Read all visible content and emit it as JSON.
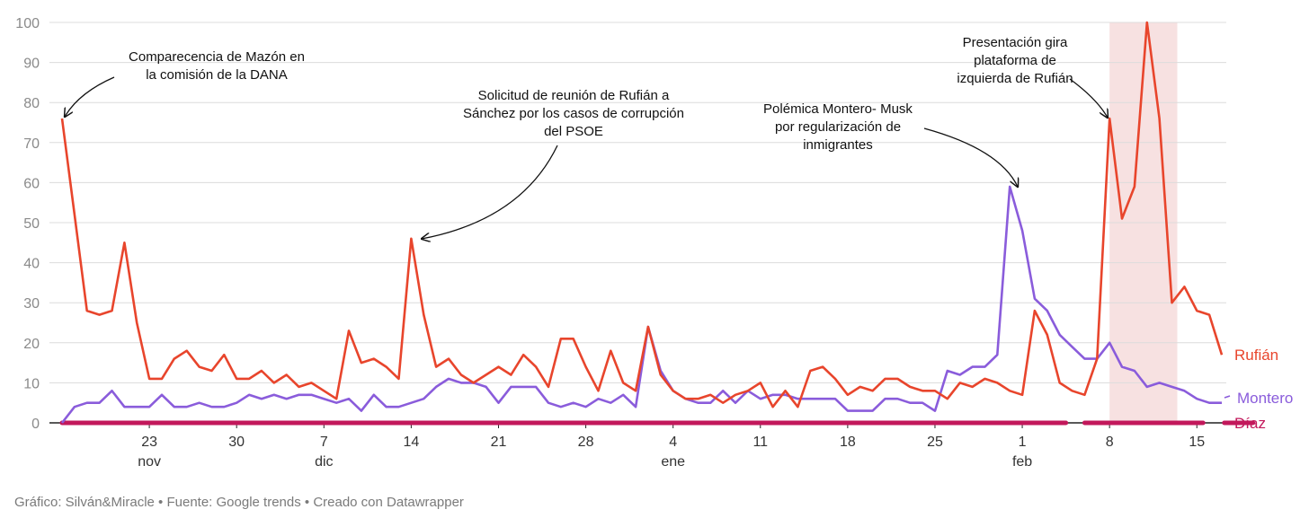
{
  "chart_data": {
    "type": "line",
    "ylim": [
      0,
      100
    ],
    "y_ticks": [
      0,
      10,
      20,
      30,
      40,
      50,
      60,
      70,
      80,
      90,
      100
    ],
    "grid": true,
    "x_start": "2024-11-16",
    "x_end": "2025-02-17",
    "x_ticks": [
      {
        "date": "2024-11-23",
        "day": "23",
        "month": "nov"
      },
      {
        "date": "2024-11-30",
        "day": "30",
        "month": ""
      },
      {
        "date": "2024-12-07",
        "day": "7",
        "month": "dic"
      },
      {
        "date": "2024-12-14",
        "day": "14",
        "month": ""
      },
      {
        "date": "2024-12-21",
        "day": "21",
        "month": ""
      },
      {
        "date": "2024-12-28",
        "day": "28",
        "month": ""
      },
      {
        "date": "2025-01-04",
        "day": "4",
        "month": "ene"
      },
      {
        "date": "2025-01-11",
        "day": "11",
        "month": ""
      },
      {
        "date": "2025-01-18",
        "day": "18",
        "month": ""
      },
      {
        "date": "2025-01-25",
        "day": "25",
        "month": ""
      },
      {
        "date": "2025-02-01",
        "day": "1",
        "month": "feb"
      },
      {
        "date": "2025-02-08",
        "day": "8",
        "month": ""
      },
      {
        "date": "2025-02-15",
        "day": "15",
        "month": ""
      }
    ],
    "highlight_range": [
      "2025-02-08",
      "2025-02-13"
    ],
    "series": [
      {
        "name": "Rufián",
        "color": "#e8452c",
        "values": [
          76,
          52,
          28,
          27,
          28,
          45,
          25,
          11,
          11,
          16,
          18,
          14,
          13,
          17,
          11,
          11,
          13,
          10,
          12,
          9,
          10,
          8,
          6,
          23,
          15,
          16,
          14,
          11,
          46,
          27,
          14,
          16,
          12,
          10,
          12,
          14,
          12,
          17,
          14,
          9,
          21,
          21,
          14,
          8,
          18,
          10,
          8,
          24,
          12,
          8,
          6,
          6,
          7,
          5,
          7,
          8,
          10,
          4,
          8,
          4,
          13,
          14,
          11,
          7,
          9,
          8,
          11,
          11,
          9,
          8,
          8,
          6,
          10,
          9,
          11,
          10,
          8,
          7,
          28,
          22,
          10,
          8,
          7,
          16,
          76,
          51,
          59,
          100,
          76,
          30,
          34,
          28,
          27,
          17
        ]
      },
      {
        "name": "Montero",
        "color": "#8a5cdb",
        "values": [
          0,
          4,
          5,
          5,
          8,
          4,
          4,
          4,
          7,
          4,
          4,
          5,
          4,
          4,
          5,
          7,
          6,
          7,
          6,
          7,
          7,
          6,
          5,
          6,
          3,
          7,
          4,
          4,
          5,
          6,
          9,
          11,
          10,
          10,
          9,
          5,
          9,
          9,
          9,
          5,
          4,
          5,
          4,
          6,
          5,
          7,
          4,
          24,
          13,
          8,
          6,
          5,
          5,
          8,
          5,
          8,
          6,
          7,
          7,
          6,
          6,
          6,
          6,
          3,
          3,
          3,
          6,
          6,
          5,
          5,
          3,
          13,
          12,
          14,
          14,
          17,
          59,
          48,
          31,
          28,
          22,
          19,
          16,
          16,
          20,
          14,
          13,
          9,
          10,
          9,
          8,
          6,
          5,
          5
        ]
      },
      {
        "name": "Díaz",
        "color": "#c2185b",
        "values": [
          0,
          0,
          0,
          0,
          0,
          0,
          0,
          0,
          0,
          0,
          0,
          0,
          0,
          0,
          0,
          0,
          0,
          0,
          0,
          0,
          0,
          0,
          0,
          0,
          0,
          0,
          0,
          0,
          0,
          0,
          0,
          0,
          0,
          0,
          0,
          0,
          0,
          0,
          0,
          0,
          0,
          0,
          0,
          0,
          0,
          0,
          0,
          0,
          0,
          0,
          0,
          0,
          0,
          0,
          0,
          0,
          0,
          0,
          0,
          0,
          0,
          0,
          0,
          0,
          0,
          0,
          0,
          0,
          0,
          0,
          0,
          0,
          0,
          0,
          0,
          0,
          0,
          0,
          0,
          0,
          0,
          0,
          0,
          0,
          0,
          0,
          0,
          0,
          0,
          0,
          0,
          0,
          0,
          0
        ]
      }
    ],
    "annotations": [
      {
        "lines": [
          "Comparecencia de  Mazón en",
          "la comisión de la DANA"
        ],
        "date": "2024-11-16",
        "value": 76
      },
      {
        "lines": [
          "Solicitud de reunión de Rufián a",
          "Sánchez por los casos de corrupción",
          "del PSOE"
        ],
        "date": "2024-12-14",
        "value": 46
      },
      {
        "lines": [
          "Polémica Montero- Musk",
          "por regularización de",
          "inmigrantes"
        ],
        "date": "2025-02-01",
        "value": 59
      },
      {
        "lines": [
          "Presentación gira",
          "plataforma de",
          "izquierda de Rufián"
        ],
        "date": "2025-02-08",
        "value": 76
      }
    ]
  },
  "footer": "Gráfico: Silván&Miracle • Fuente: Google trends • Creado con Datawrapper"
}
